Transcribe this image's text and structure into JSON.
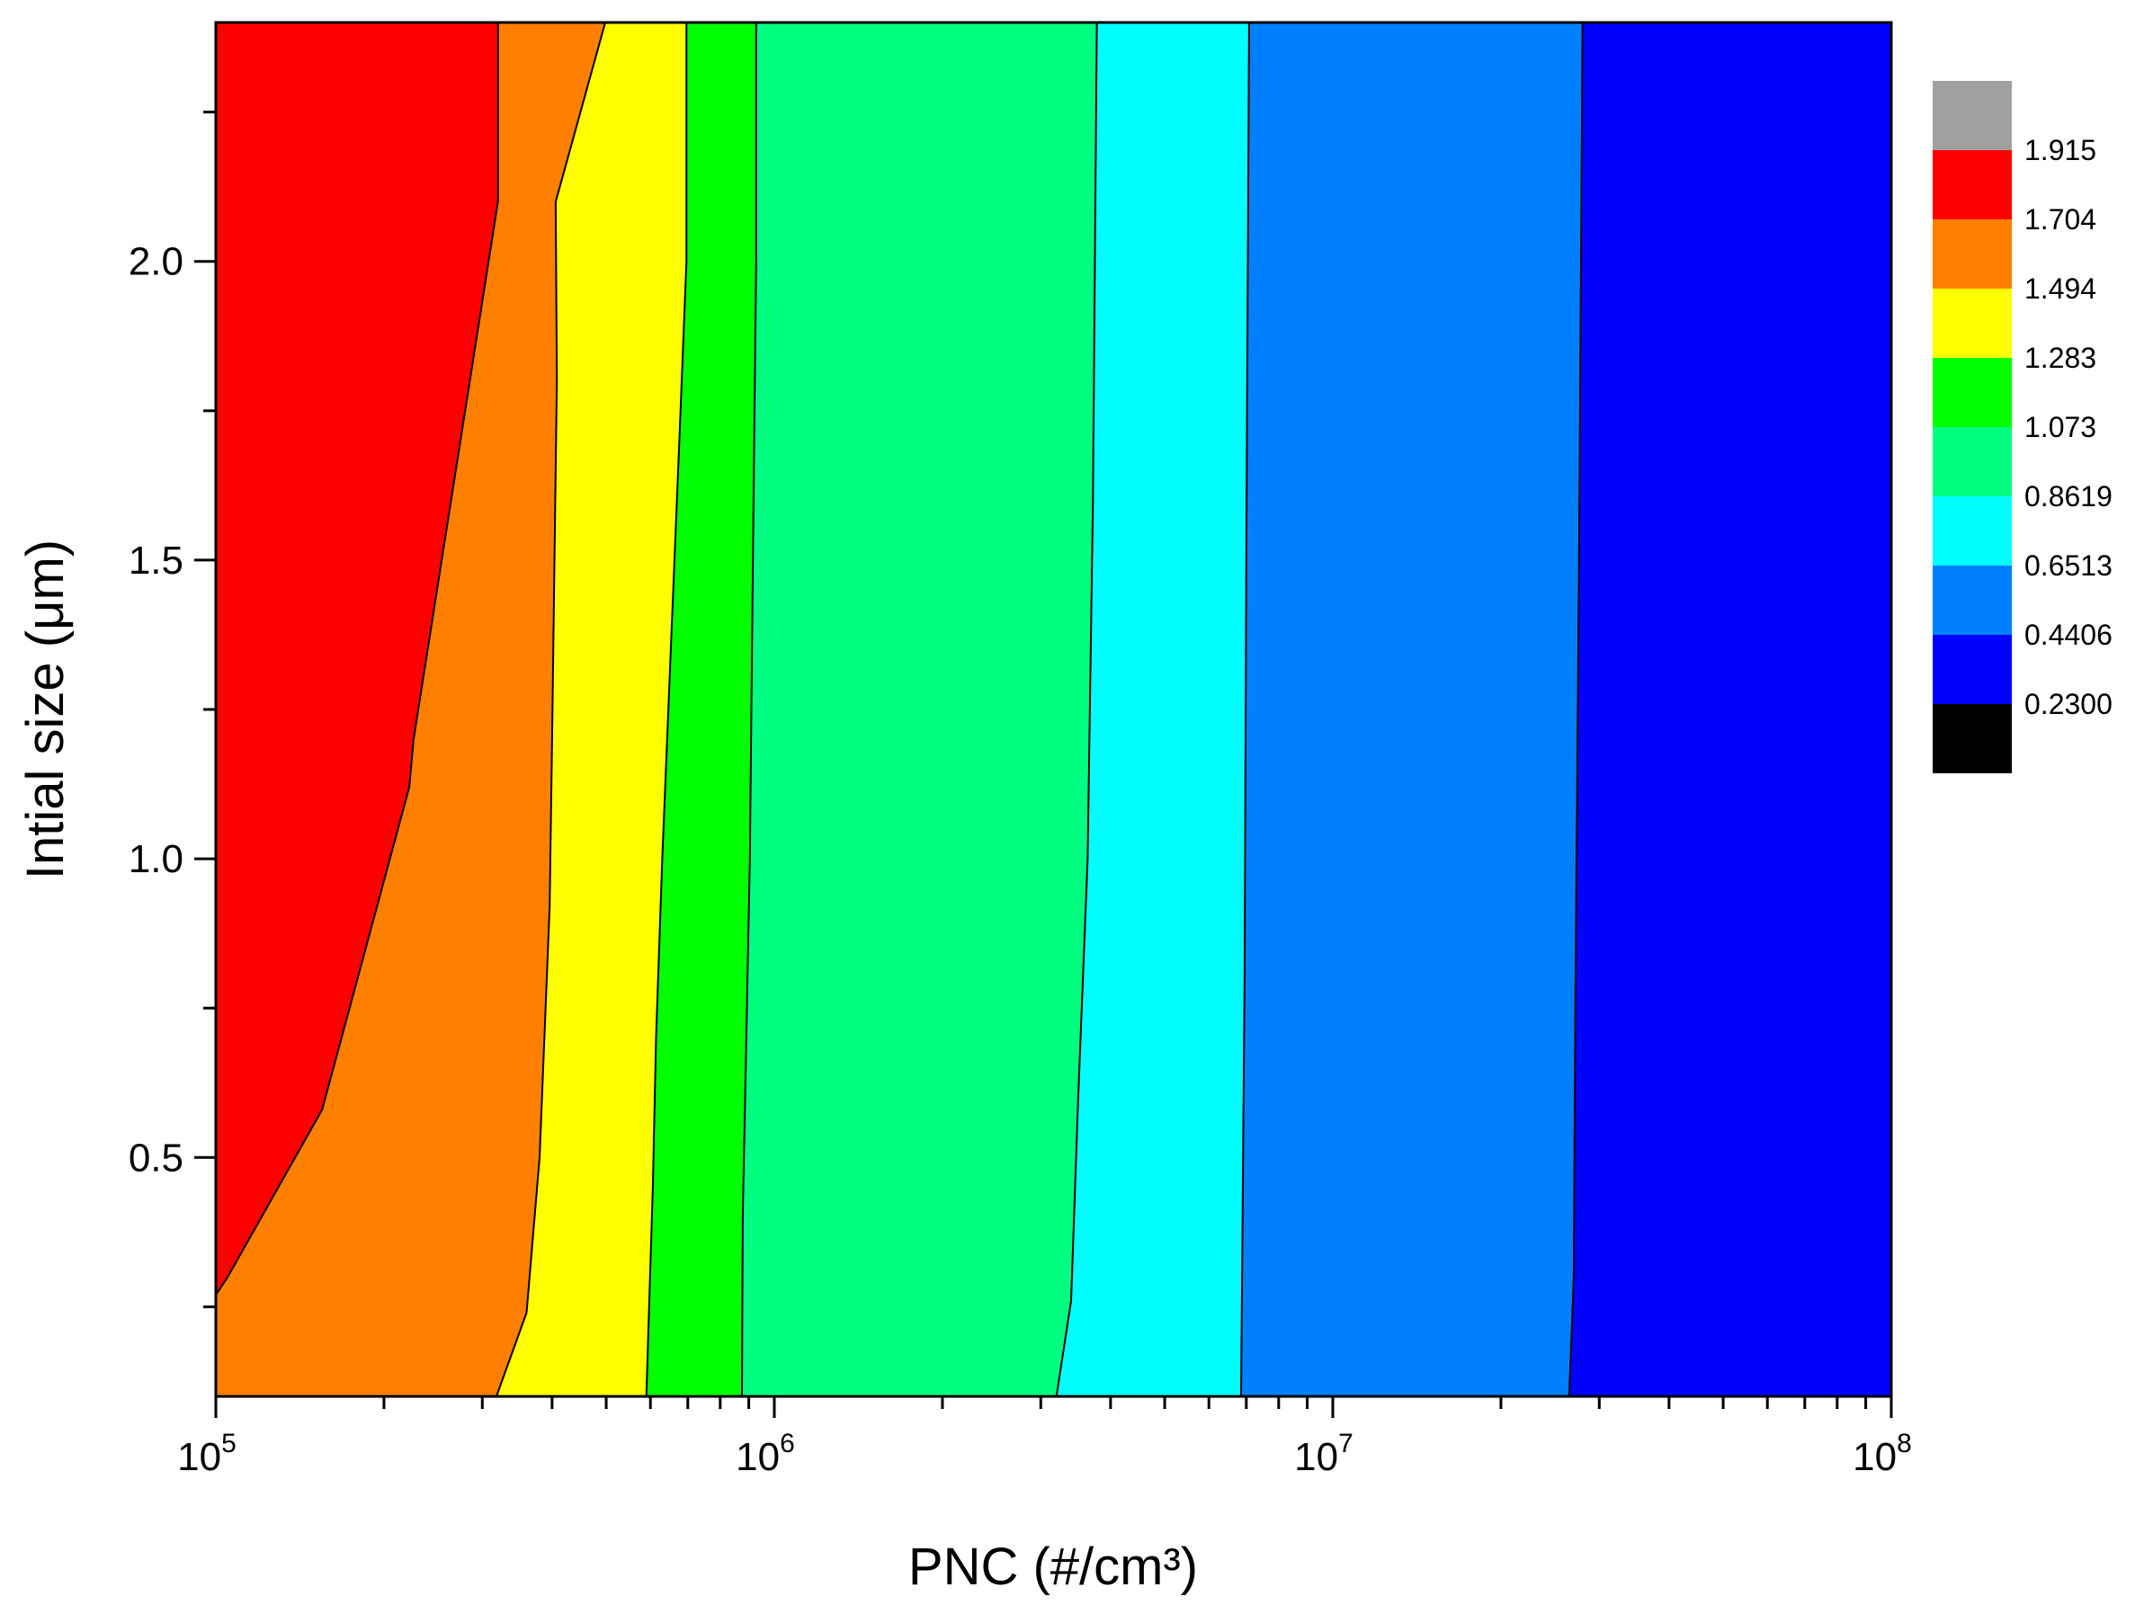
{
  "chart_data": {
    "type": "contour",
    "xlabel": "PNC (#/cm³)",
    "ylabel": "Intial size (μm)",
    "x_scale": "log",
    "xlim": [
      100000,
      100000000
    ],
    "ylim": [
      0.1,
      2.4
    ],
    "x_ticks": [
      {
        "base": "10",
        "exp": "5",
        "value": 100000
      },
      {
        "base": "10",
        "exp": "6",
        "value": 1000000
      },
      {
        "base": "10",
        "exp": "7",
        "value": 10000000
      },
      {
        "base": "10",
        "exp": "8",
        "value": 100000000
      }
    ],
    "y_ticks": [
      {
        "label": "0.5",
        "value": 0.5
      },
      {
        "label": "1.0",
        "value": 1.0
      },
      {
        "label": "1.5",
        "value": 1.5
      },
      {
        "label": "2.0",
        "value": 2.0
      }
    ],
    "y_minor_ticks": [
      0.25,
      0.75,
      1.25,
      1.75,
      2.25
    ],
    "grid": false,
    "legend_position": "right",
    "legend": {
      "levels": [
        "1.915",
        "1.704",
        "1.494",
        "1.283",
        "1.073",
        "0.8619",
        "0.6513",
        "0.4406",
        "0.2300"
      ],
      "colors": [
        "#a0a0a0",
        "#ff0000",
        "#ff8000",
        "#ffff00",
        "#00ff00",
        "#00ff80",
        "#00ffff",
        "#0080ff",
        "#0000ff",
        "#000000"
      ]
    },
    "contour_lines": [
      {
        "level": "1.704",
        "points": [
          [
            100000,
            0.27
          ],
          [
            105000,
            0.3
          ],
          [
            155000,
            0.58
          ],
          [
            222000,
            1.12
          ],
          [
            226000,
            1.2
          ],
          [
            320000,
            2.1
          ],
          [
            320000,
            2.4
          ]
        ]
      },
      {
        "level": "1.494",
        "points": [
          [
            318000,
            0.1
          ],
          [
            360000,
            0.24
          ],
          [
            380000,
            0.5
          ],
          [
            396000,
            0.92
          ],
          [
            400000,
            1.2
          ],
          [
            408000,
            1.8
          ],
          [
            406000,
            2.1
          ],
          [
            498000,
            2.4
          ]
        ]
      },
      {
        "level": "1.283",
        "points": [
          [
            590000,
            0.1
          ],
          [
            606000,
            0.45
          ],
          [
            614000,
            0.7
          ],
          [
            630000,
            1.0
          ],
          [
            676000,
            1.7
          ],
          [
            696000,
            2.0
          ],
          [
            696000,
            2.4
          ]
        ]
      },
      {
        "level": "1.073",
        "points": [
          [
            875000,
            0.1
          ],
          [
            878000,
            0.4
          ],
          [
            904000,
            1.0
          ],
          [
            918000,
            1.6
          ],
          [
            928000,
            2.0
          ],
          [
            928000,
            2.4
          ]
        ]
      },
      {
        "level": "0.8619",
        "points": [
          [
            3200000,
            0.1
          ],
          [
            3400000,
            0.26
          ],
          [
            3500000,
            0.6
          ],
          [
            3640000,
            1.0
          ],
          [
            3720000,
            1.6
          ],
          [
            3780000,
            2.4
          ]
        ]
      },
      {
        "level": "0.6513",
        "points": [
          [
            6850000,
            0.1
          ],
          [
            6880000,
            0.3
          ],
          [
            6950000,
            0.8
          ],
          [
            7000000,
            1.5
          ],
          [
            7080000,
            2.4
          ]
        ]
      },
      {
        "level": "0.4406",
        "points": [
          [
            26500000,
            0.1
          ],
          [
            27000000,
            0.3
          ],
          [
            27200000,
            0.8
          ],
          [
            27600000,
            1.5
          ],
          [
            28000000,
            2.4
          ]
        ]
      }
    ]
  }
}
